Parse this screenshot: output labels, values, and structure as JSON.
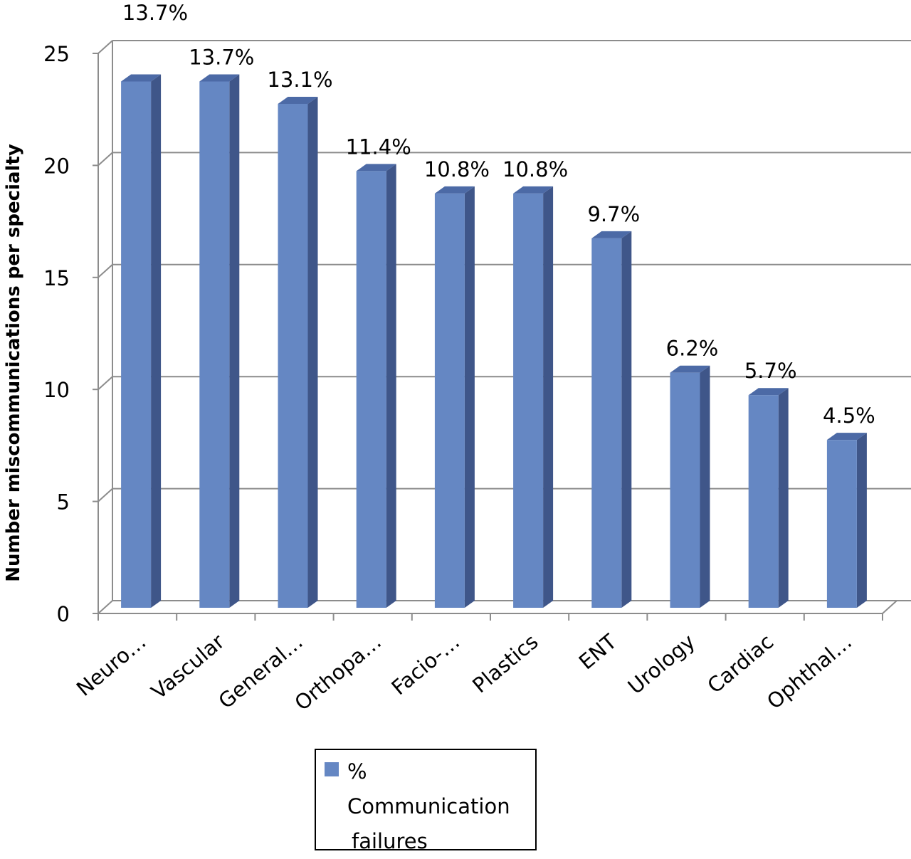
{
  "chart_data": {
    "type": "bar",
    "categories": [
      "Neuro…",
      "Vascular",
      "General…",
      "Orthopa…",
      "Facio-…",
      "Plastics",
      "ENT",
      "Urology",
      "Cardiac",
      "Ophthal…"
    ],
    "values": [
      24,
      24,
      23,
      20,
      19,
      19,
      17,
      11,
      10,
      8
    ],
    "data_labels": [
      "13.7%",
      "13.7%",
      "13.1%",
      "11.4%",
      "10.8%",
      "10.8%",
      "9.7%",
      "6.2%",
      "5.7%",
      "4.5%"
    ],
    "series": [
      {
        "name": "% Communication failures",
        "values": [
          24,
          24,
          23,
          20,
          19,
          19,
          17,
          11,
          10,
          8
        ]
      }
    ],
    "title": "",
    "xlabel": "",
    "ylabel": "Number miscommunications per specialty",
    "ylim": [
      0,
      25
    ],
    "yticks": [
      0,
      5,
      10,
      15,
      20,
      25
    ],
    "grid": true,
    "legend_position": "bottom",
    "colors": {
      "bar_front": "#6587c3",
      "bar_side": "#3f5689",
      "bar_top": "#4c6aa6",
      "grid": "#8c8c8c"
    }
  },
  "legend": {
    "line1": "%",
    "line2": "Communication",
    "line3": "failures"
  }
}
